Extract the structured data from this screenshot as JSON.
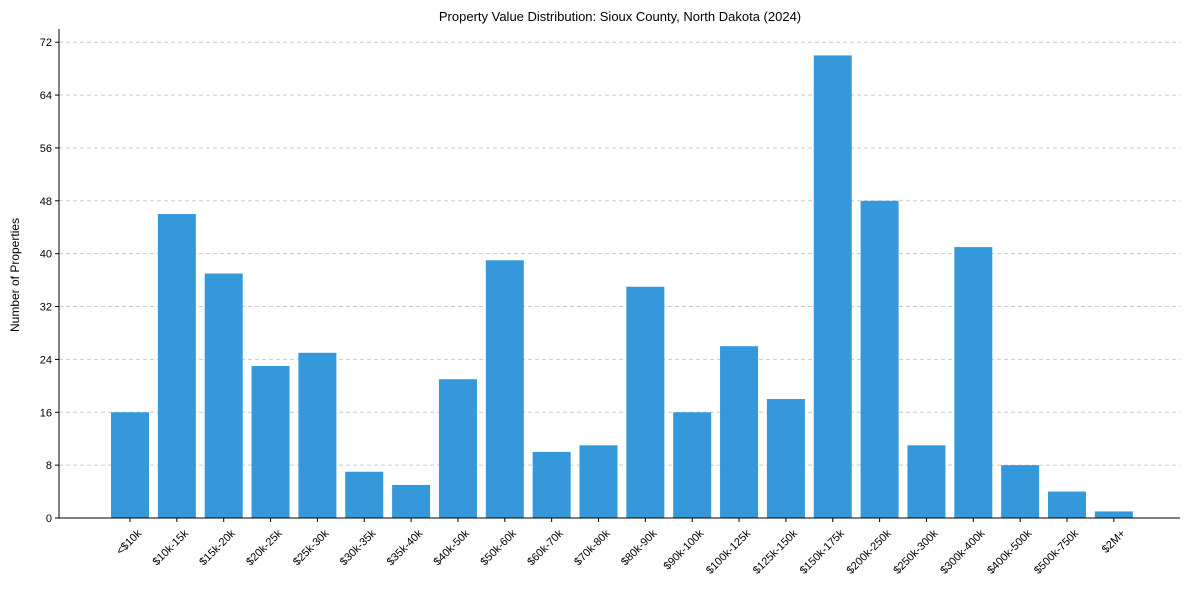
{
  "chart_data": {
    "type": "bar",
    "title": "Property Value Distribution: Sioux County, North Dakota (2024)",
    "xlabel": "",
    "ylabel": "Number of Properties",
    "ylim": [
      0,
      74
    ],
    "yticks": [
      0,
      8,
      16,
      24,
      32,
      40,
      48,
      56,
      64,
      72
    ],
    "grid": "y",
    "bar_color": "#3498db",
    "categories": [
      "<$10k",
      "$10k-15k",
      "$15k-20k",
      "$20k-25k",
      "$25k-30k",
      "$30k-35k",
      "$35k-40k",
      "$40k-50k",
      "$50k-60k",
      "$60k-70k",
      "$70k-80k",
      "$80k-90k",
      "$90k-100k",
      "$100k-125k",
      "$125k-150k",
      "$150k-175k",
      "$200k-250k",
      "$250k-300k",
      "$300k-400k",
      "$400k-500k",
      "$500k-750k",
      "$2M+"
    ],
    "values": [
      16,
      46,
      37,
      23,
      25,
      7,
      5,
      21,
      39,
      10,
      11,
      35,
      16,
      26,
      18,
      70,
      48,
      11,
      41,
      8,
      4,
      1
    ]
  }
}
